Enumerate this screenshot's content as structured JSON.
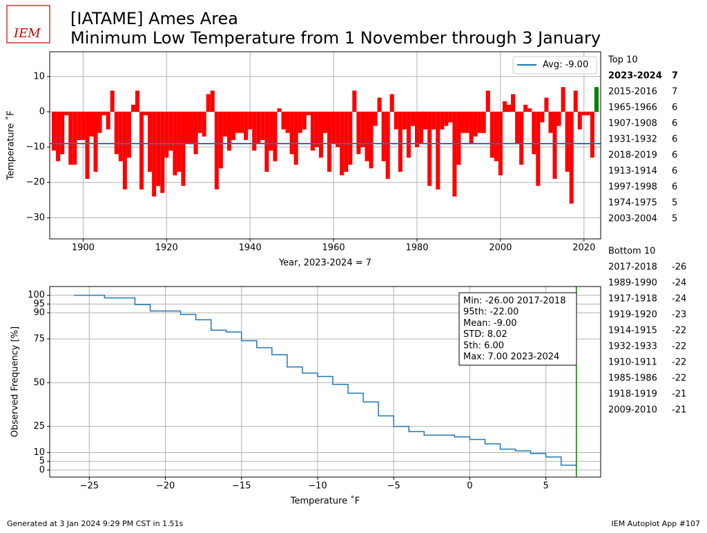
{
  "header": {
    "logo": "IEM",
    "title_line1": "[IATAME] Ames Area",
    "title_line2": "Minimum Low Temperature from 1 November through 3 January"
  },
  "chart_data": [
    {
      "type": "bar",
      "x": [
        1893,
        1894,
        1895,
        1896,
        1897,
        1898,
        1899,
        1900,
        1901,
        1902,
        1903,
        1904,
        1905,
        1906,
        1907,
        1908,
        1909,
        1910,
        1911,
        1912,
        1913,
        1914,
        1915,
        1916,
        1917,
        1918,
        1919,
        1920,
        1921,
        1922,
        1923,
        1924,
        1925,
        1926,
        1927,
        1928,
        1929,
        1930,
        1931,
        1932,
        1933,
        1934,
        1935,
        1936,
        1937,
        1938,
        1939,
        1940,
        1941,
        1942,
        1943,
        1944,
        1945,
        1946,
        1947,
        1948,
        1949,
        1950,
        1951,
        1952,
        1953,
        1954,
        1955,
        1956,
        1957,
        1958,
        1959,
        1960,
        1961,
        1962,
        1963,
        1964,
        1965,
        1966,
        1967,
        1968,
        1969,
        1970,
        1971,
        1972,
        1973,
        1974,
        1975,
        1976,
        1977,
        1978,
        1979,
        1980,
        1981,
        1982,
        1983,
        1984,
        1985,
        1986,
        1987,
        1988,
        1989,
        1990,
        1991,
        1992,
        1993,
        1994,
        1995,
        1996,
        1997,
        1998,
        1999,
        2000,
        2001,
        2002,
        2003,
        2004,
        2005,
        2006,
        2007,
        2008,
        2009,
        2010,
        2011,
        2012,
        2013,
        2014,
        2015,
        2016,
        2017,
        2018,
        2019,
        2020,
        2021,
        2022,
        2023
      ],
      "values": [
        -11,
        -14,
        -12,
        -1,
        -15,
        -15,
        -8,
        -8,
        -19,
        -7,
        -17,
        -6,
        -1,
        -5,
        6,
        -12,
        -14,
        -22,
        -13,
        2,
        6,
        -22,
        -1,
        -17,
        -24,
        -21,
        -23,
        -13,
        -11,
        -18,
        -17,
        -21,
        -9,
        -9,
        -12,
        -6,
        -7,
        5,
        6,
        -22,
        -16,
        -7,
        -11,
        -8,
        -6,
        -6,
        -8,
        -5,
        -11,
        -9,
        -8,
        -17,
        -11,
        -14,
        1,
        -5,
        -6,
        -12,
        -15,
        -6,
        -5,
        -1,
        -11,
        -10,
        -13,
        -6,
        -17,
        -9,
        -10,
        -18,
        -17,
        -15,
        6,
        -12,
        -10,
        -14,
        -16,
        -4,
        4,
        -14,
        -19,
        5,
        -5,
        -17,
        -5,
        -13,
        -4,
        -10,
        -9,
        -5,
        -21,
        -5,
        -22,
        -5,
        -4,
        -3,
        -24,
        -15,
        -6,
        -6,
        -9,
        -7,
        -6,
        -6,
        6,
        -13,
        -14,
        -18,
        3,
        2,
        5,
        -9,
        -15,
        2,
        1,
        -12,
        -21,
        -3,
        4,
        -6,
        -19,
        -4,
        7,
        -17,
        -26,
        6,
        -5,
        -1,
        -1,
        -13,
        7
      ],
      "color": "#ff0000",
      "current_color": "#008000",
      "current_x": 2023,
      "avg_line": {
        "value": -9,
        "label": "Avg: -9.00",
        "color": "#1f77b4"
      },
      "xlabel": "Year, 2023-2024 = 7",
      "ylabel": "Temperature ˚F",
      "xlim": [
        1892,
        2024
      ],
      "ylim": [
        -36,
        17
      ],
      "xticks": [
        1900,
        1920,
        1940,
        1960,
        1980,
        2000,
        2020
      ],
      "yticks": [
        {
          "value": -30,
          "label": "−30"
        },
        {
          "value": -20,
          "label": "−20"
        },
        {
          "value": -10,
          "label": "−10"
        },
        0,
        10
      ],
      "grid": true
    },
    {
      "type": "step",
      "x": [
        -26,
        -24,
        -22,
        -21,
        -19,
        -18,
        -17,
        -16,
        -15,
        -14,
        -13,
        -12,
        -11,
        -10,
        -9,
        -8,
        -7,
        -6,
        -5,
        -4,
        -3,
        -1,
        0,
        1,
        2,
        3,
        4,
        5,
        6,
        7
      ],
      "values": [
        100,
        98.5,
        94.7,
        91,
        89,
        86,
        80,
        79,
        74,
        70,
        66,
        59,
        55.5,
        53.5,
        49,
        44,
        39,
        31,
        25,
        22,
        20,
        19,
        17.5,
        15,
        12,
        11,
        9.5,
        7.5,
        2.8,
        2
      ],
      "color": "#1f77b4",
      "marker_line": {
        "x": 7,
        "color": "#008000"
      },
      "stats": [
        "Min: -26.00 2017-2018",
        "95th: -22.00",
        "Mean: -9.00",
        "STD: 8.02",
        "5th: 6.00",
        "Max: 7.00 2023-2024"
      ],
      "xlabel": "Temperature ˚F",
      "ylabel": "Observed Frequency [%]",
      "xlim": [
        -27.6,
        8.6
      ],
      "ylim": [
        -4,
        105
      ],
      "xticks": [
        {
          "value": -25,
          "label": "−25"
        },
        {
          "value": -20,
          "label": "−20"
        },
        {
          "value": -15,
          "label": "−15"
        },
        {
          "value": -10,
          "label": "−10"
        },
        {
          "value": -5,
          "label": "−5"
        },
        0,
        5
      ],
      "yticks": [
        0,
        5,
        10,
        25,
        50,
        75,
        90,
        95,
        100
      ],
      "grid": true
    }
  ],
  "top10": {
    "title": "Top 10",
    "rows": [
      [
        "2023-2024",
        "7"
      ],
      [
        "2015-2016",
        "7"
      ],
      [
        "1965-1966",
        "6"
      ],
      [
        "1907-1908",
        "6"
      ],
      [
        "1931-1932",
        "6"
      ],
      [
        "2018-2019",
        "6"
      ],
      [
        "1913-1914",
        "6"
      ],
      [
        "1997-1998",
        "6"
      ],
      [
        "1974-1975",
        "5"
      ],
      [
        "2003-2004",
        "5"
      ]
    ]
  },
  "bottom10": {
    "title": "Bottom 10",
    "rows": [
      [
        "2017-2018",
        "-26"
      ],
      [
        "1989-1990",
        "-24"
      ],
      [
        "1917-1918",
        "-24"
      ],
      [
        "1919-1920",
        "-23"
      ],
      [
        "1914-1915",
        "-22"
      ],
      [
        "1932-1933",
        "-22"
      ],
      [
        "1910-1911",
        "-22"
      ],
      [
        "1985-1986",
        "-22"
      ],
      [
        "1918-1919",
        "-21"
      ],
      [
        "2009-2010",
        "-21"
      ]
    ]
  },
  "footer": {
    "left": "Generated at 3 Jan 2024 9:29 PM CST in 1.51s",
    "right": "IEM Autoplot App #107"
  }
}
